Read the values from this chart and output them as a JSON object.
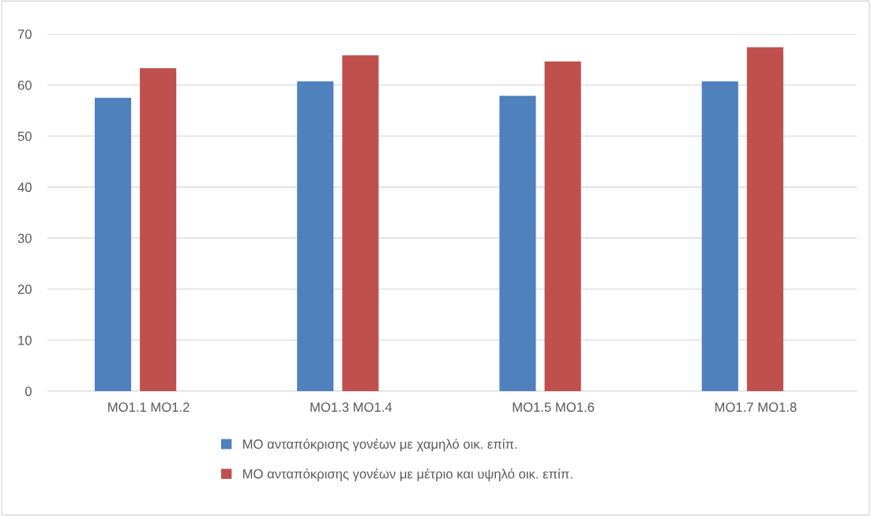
{
  "chart_data": {
    "type": "bar",
    "categories": [
      "MO1.1 MO1.2",
      "MO1.3 MO1.4",
      "MO1.5 MO1.6",
      "MO1.7 MO1.8"
    ],
    "series": [
      {
        "name": "ΜΟ ανταπόκρισης γονέων με χαμηλό οικ. επίπ.",
        "color": "#4f81bd",
        "values": [
          57.5,
          60.7,
          57.9,
          60.7
        ]
      },
      {
        "name": "ΜΟ ανταπόκρισης γονέων με μέτριο και υψηλό οικ. επίπ.",
        "color": "#c0504d",
        "values": [
          63.3,
          65.8,
          64.6,
          67.4
        ]
      }
    ],
    "ylim": [
      0,
      70
    ],
    "yticks": [
      0,
      10,
      20,
      30,
      40,
      50,
      60,
      70
    ],
    "grid": "y",
    "legend": "bottom"
  }
}
